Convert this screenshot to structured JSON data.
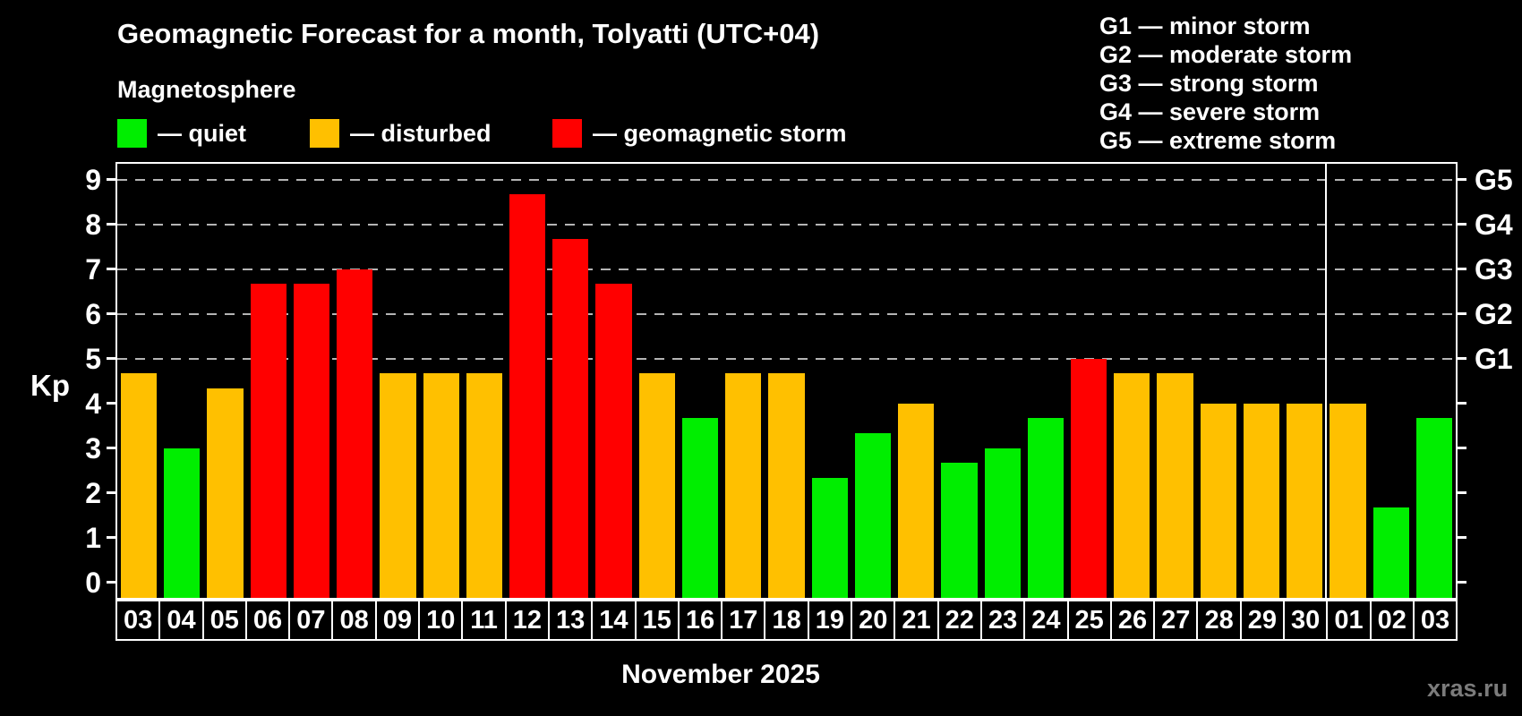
{
  "header": {
    "title": "Geomagnetic Forecast for a month, Tolyatti (UTC+04)",
    "subtitle": "Magnetosphere"
  },
  "status_colors": {
    "quiet": "#00ee00",
    "disturbed": "#ffc000",
    "storm": "#ff0000"
  },
  "legend": {
    "items": [
      {
        "status": "quiet",
        "label": "— quiet"
      },
      {
        "status": "disturbed",
        "label": "— disturbed"
      },
      {
        "status": "storm",
        "label": "— geomagnetic storm"
      }
    ]
  },
  "g_legend": {
    "items": [
      {
        "label": "G1 — minor storm"
      },
      {
        "label": "G2 — moderate storm"
      },
      {
        "label": "G3 — strong storm"
      },
      {
        "label": "G4 — severe storm"
      },
      {
        "label": "G5 — extreme storm"
      }
    ]
  },
  "chart_data": {
    "type": "bar",
    "title": "Geomagnetic Forecast for a month, Tolyatti (UTC+04)",
    "xlabel": "November 2025",
    "ylabel": "Kp",
    "ylim": [
      0,
      9.4
    ],
    "grid": "dashed horizontal at Kp 5-9",
    "legend_position": "top",
    "categories": [
      "03",
      "04",
      "05",
      "06",
      "07",
      "08",
      "09",
      "10",
      "11",
      "12",
      "13",
      "14",
      "15",
      "16",
      "17",
      "18",
      "19",
      "20",
      "21",
      "22",
      "23",
      "24",
      "25",
      "26",
      "27",
      "28",
      "29",
      "30",
      "01",
      "02",
      "03"
    ],
    "values": [
      4.67,
      3.0,
      4.33,
      6.67,
      6.67,
      7.0,
      4.67,
      4.67,
      4.67,
      8.67,
      7.67,
      6.67,
      4.67,
      3.67,
      4.67,
      4.67,
      2.33,
      3.33,
      4.0,
      2.67,
      3.0,
      3.67,
      5.0,
      4.67,
      4.67,
      4.0,
      4.0,
      4.0,
      4.0,
      1.67,
      3.67
    ],
    "statuses": [
      "disturbed",
      "quiet",
      "disturbed",
      "storm",
      "storm",
      "storm",
      "disturbed",
      "disturbed",
      "disturbed",
      "storm",
      "storm",
      "storm",
      "disturbed",
      "quiet",
      "disturbed",
      "disturbed",
      "quiet",
      "quiet",
      "disturbed",
      "quiet",
      "quiet",
      "quiet",
      "storm",
      "disturbed",
      "disturbed",
      "disturbed",
      "disturbed",
      "disturbed",
      "disturbed",
      "quiet",
      "quiet"
    ],
    "month_separator_after_index": 27,
    "y_axis": {
      "label": "Kp",
      "ticks": [
        0,
        1,
        2,
        3,
        4,
        5,
        6,
        7,
        8,
        9
      ]
    },
    "right_axis": {
      "ticks": [
        {
          "kp": 5,
          "label": "G1"
        },
        {
          "kp": 6,
          "label": "G2"
        },
        {
          "kp": 7,
          "label": "G3"
        },
        {
          "kp": 8,
          "label": "G4"
        },
        {
          "kp": 9,
          "label": "G5"
        }
      ]
    },
    "gridlines_kp": [
      5,
      6,
      7,
      8,
      9
    ]
  },
  "footer": {
    "month_label": "November 2025",
    "watermark": "xras.ru"
  }
}
